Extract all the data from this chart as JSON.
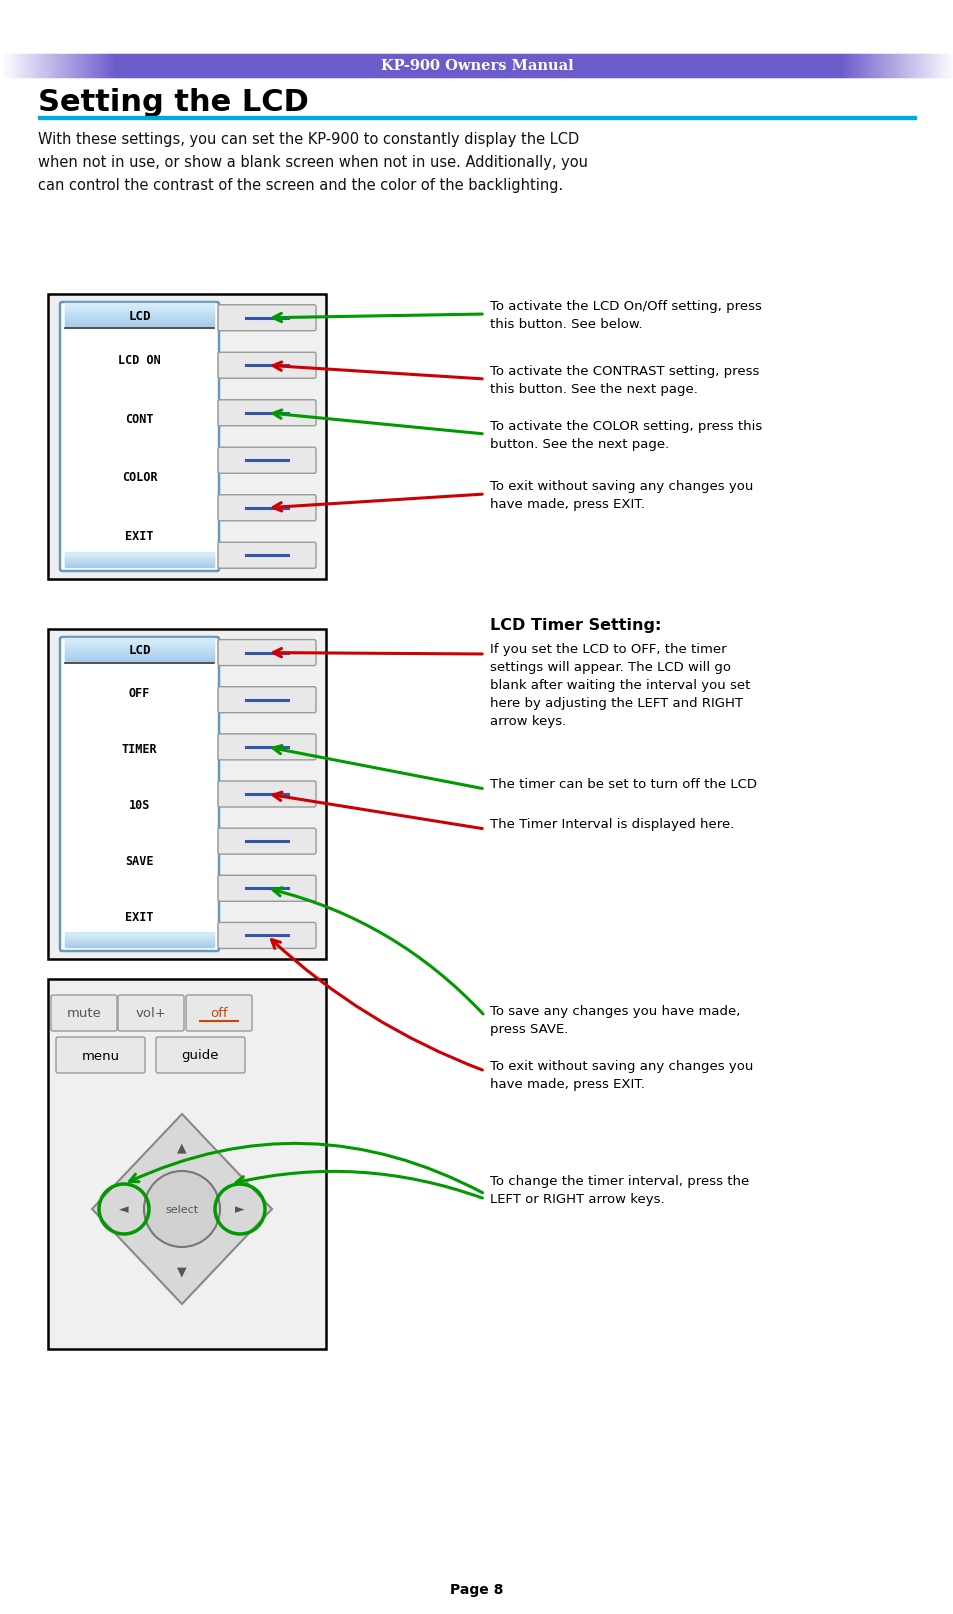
{
  "page_bg": "#ffffff",
  "header_text": "KP-900 Owners Manual",
  "header_purple": "#6a5acd",
  "title_text": "Setting the LCD",
  "blue_line_color": "#00aadd",
  "intro_text": "With these settings, you can set the KP-900 to constantly display the LCD\nwhen not in use, or show a blank screen when not in use. Additionally, you\ncan control the contrast of the screen and the color of the backlighting.",
  "panel1_menu": [
    "LCD ON",
    "CONT",
    "COLOR",
    "EXIT"
  ],
  "panel2_menu": [
    "OFF",
    "TIMER",
    "10S",
    "SAVE",
    "EXIT"
  ],
  "annots1": [
    "To activate the LCD On/Off setting, press\nthis button. See below.",
    "To activate the CONTRAST setting, press\nthis button. See the next page.",
    "To activate the COLOR setting, press this\nbutton. See the next page.",
    "To exit without saving any changes you\nhave made, press EXIT."
  ],
  "annots1_colors": [
    "#009900",
    "#cc0000",
    "#009900",
    "#cc0000"
  ],
  "lcd_timer_heading": "LCD Timer Setting:",
  "annots2": [
    "If you set the LCD to OFF, the timer\nsettings will appear. The LCD will go\nblank after waiting the interval you set\nhere by adjusting the LEFT and RIGHT\narrow keys.",
    "The timer can be set to turn off the LCD",
    "The Timer Interval is displayed here.",
    "To save any changes you have made,\npress SAVE.",
    "To exit without saving any changes you\nhave made, press EXIT.",
    "To change the timer interval, press the\nLEFT or RIGHT arrow keys."
  ],
  "annots2_colors": [
    "#cc0000",
    "#009900",
    "#cc0000",
    "#cc0000",
    "#cc0000",
    "#009900"
  ],
  "page_num": "Page 8"
}
